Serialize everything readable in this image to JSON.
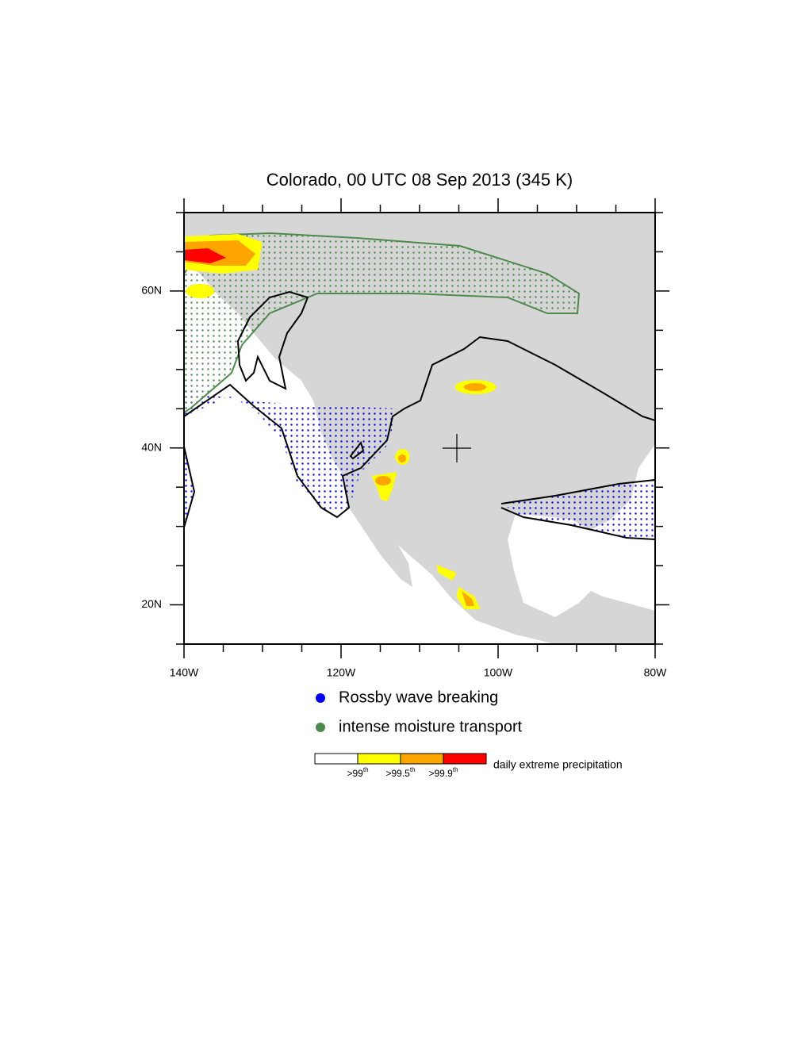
{
  "map": {
    "title": "Colorado, 00 UTC 08 Sep 2013 (345 K)",
    "xlim": [
      -140,
      -80
    ],
    "ylim": [
      15,
      70
    ],
    "xticks": [
      {
        "value": -140,
        "label": "140W"
      },
      {
        "value": -120,
        "label": "120W"
      },
      {
        "value": -100,
        "label": "100W"
      },
      {
        "value": -80,
        "label": "80W"
      }
    ],
    "yticks": [
      {
        "value": 20,
        "label": "20N"
      },
      {
        "value": 40,
        "label": "40N"
      },
      {
        "value": 60,
        "label": "60N"
      }
    ],
    "xminorticks": [
      -135,
      -130,
      -125,
      -115,
      -110,
      -105,
      -95,
      -90,
      -85
    ],
    "yminorticks": [
      15,
      25,
      30,
      35,
      45,
      50,
      55,
      65,
      70
    ],
    "legend": [
      {
        "label": "Rossby wave breaking",
        "color": "#0000ff"
      },
      {
        "label": "intense moisture transport",
        "color": "#4e8a4e"
      }
    ],
    "colorbar": {
      "title": "daily extreme precipitation",
      "colors": [
        "#ffffff",
        "#ffff00",
        "#ffa500",
        "#ff0000"
      ],
      "labels": [
        {
          "text": ">99",
          "sup": "th"
        },
        {
          "text": ">99.5",
          "sup": "th"
        },
        {
          "text": ">99.9",
          "sup": "th"
        }
      ]
    }
  }
}
